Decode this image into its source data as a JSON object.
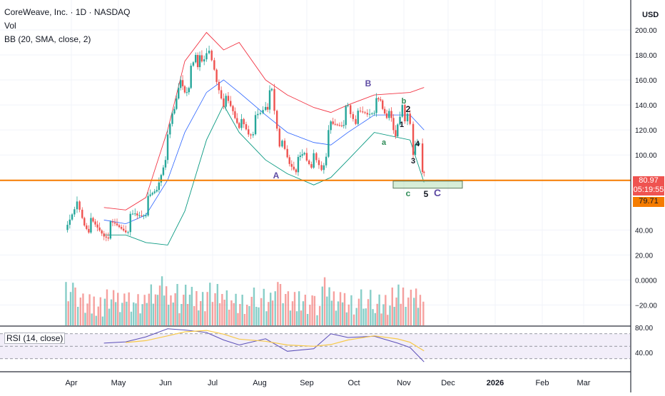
{
  "header": {
    "symbol_line": "CoreWeave, Inc. · 1D · NASDAQ",
    "vol_label": "Vol",
    "bb_label": "BB (20, SMA, close, 2)",
    "currency": "USD"
  },
  "price_axis": {
    "ticks": [
      {
        "value": 200,
        "label": "200.00"
      },
      {
        "value": 180,
        "label": "180.00"
      },
      {
        "value": 160,
        "label": "160.00"
      },
      {
        "value": 140,
        "label": "140.00"
      },
      {
        "value": 120,
        "label": "120.00"
      },
      {
        "value": 100,
        "label": "100.00"
      },
      {
        "value": 40,
        "label": "40.00"
      },
      {
        "value": 20,
        "label": "20.00"
      },
      {
        "value": 0,
        "label": "0.0000"
      },
      {
        "value": -20,
        "label": "−20.00"
      }
    ],
    "current_price": "80.97",
    "countdown": "05:19:55",
    "support_price": "79.71"
  },
  "rsi": {
    "label": "RSI (14, close)",
    "ticks": [
      {
        "value": 80,
        "label": "80.00"
      },
      {
        "value": 40,
        "label": "40.00"
      }
    ],
    "upper_band": 70,
    "lower_band": 30
  },
  "time_axis": {
    "labels": [
      "Apr",
      "May",
      "Jun",
      "Jul",
      "Aug",
      "Sep",
      "Oct",
      "Nov",
      "Dec",
      "2026",
      "Feb",
      "Mar"
    ]
  },
  "wave_labels": [
    "A",
    "B",
    "C",
    "a",
    "b",
    "c",
    "1",
    "2",
    "3",
    "4",
    "5"
  ],
  "colors": {
    "up": "#26a69a",
    "down": "#ef5350",
    "bb_upper": "#f23645",
    "bb_lower": "#089981",
    "bb_basis": "#2962ff",
    "horizontal_line": "#f57c00",
    "rsi_line": "#5b4fb8",
    "rsi_ma": "#f7c948",
    "wave_purple": "#5e4ba3",
    "wave_teal": "#2e8b57"
  },
  "chart_data": {
    "type": "candlestick",
    "title": "CoreWeave, Inc. · 1D · NASDAQ",
    "ylabel": "USD",
    "ylim": [
      -30,
      210
    ],
    "x_range": [
      "Apr",
      "Mar"
    ],
    "horizontal_line": 79.71,
    "last_price": 80.97,
    "price_path": [
      [
        "Mar 28",
        40
      ],
      [
        "Apr 3",
        63
      ],
      [
        "Apr 8",
        48
      ],
      [
        "Apr 15",
        42
      ],
      [
        "Apr 22",
        38
      ],
      [
        "Apr 29",
        42
      ],
      [
        "May 6",
        43
      ],
      [
        "May 12",
        50
      ],
      [
        "May 19",
        58
      ],
      [
        "May 26",
        72
      ],
      [
        "Jun 2",
        110
      ],
      [
        "Jun 5",
        130
      ],
      [
        "Jun 9",
        160
      ],
      [
        "Jun 13",
        150
      ],
      [
        "Jun 17",
        165
      ],
      [
        "Jun 20",
        180
      ],
      [
        "Jun 24",
        170
      ],
      [
        "Jun 27",
        183
      ],
      [
        "Jul 2",
        165
      ],
      [
        "Jul 8",
        145
      ],
      [
        "Jul 14",
        135
      ],
      [
        "Jul 18",
        128
      ],
      [
        "Jul 24",
        118
      ],
      [
        "Jul 30",
        128
      ],
      [
        "Aug 4",
        140
      ],
      [
        "Aug 8",
        148
      ],
      [
        "Aug 13",
        110
      ],
      [
        "Aug 18",
        95
      ],
      [
        "Aug 25",
        92
      ],
      [
        "Aug 29",
        100
      ],
      [
        "Sep 4",
        95
      ],
      [
        "Sep 9",
        88
      ],
      [
        "Sep 15",
        122
      ],
      [
        "Sep 22",
        128
      ],
      [
        "Sep 26",
        135
      ],
      [
        "Oct 1",
        128
      ],
      [
        "Oct 7",
        132
      ],
      [
        "Oct 13",
        140
      ],
      [
        "Oct 17",
        142
      ],
      [
        "Oct 21",
        136
      ],
      [
        "Oct 24",
        128
      ],
      [
        "Oct 28",
        118
      ],
      [
        "Oct 31",
        140
      ],
      [
        "Nov 5",
        120
      ],
      [
        "Nov 7",
        100
      ],
      [
        "Nov 11",
        106
      ],
      [
        "Nov 13",
        88
      ],
      [
        "Nov 14",
        80.97
      ]
    ],
    "bollinger_upper": [
      [
        "Apr 22",
        58
      ],
      [
        "May 6",
        56
      ],
      [
        "May 19",
        66
      ],
      [
        "Jun 2",
        120
      ],
      [
        "Jun 13",
        175
      ],
      [
        "Jun 27",
        198
      ],
      [
        "Jul 8",
        184
      ],
      [
        "Jul 18",
        190
      ],
      [
        "Aug 4",
        160
      ],
      [
        "Aug 18",
        148
      ],
      [
        "Sep 4",
        138
      ],
      [
        "Sep 15",
        134
      ],
      [
        "Sep 26",
        140
      ],
      [
        "Oct 13",
        148
      ],
      [
        "Nov 5",
        150
      ],
      [
        "Nov 14",
        154
      ]
    ],
    "bollinger_basis": [
      [
        "Apr 22",
        48
      ],
      [
        "May 6",
        45
      ],
      [
        "May 19",
        52
      ],
      [
        "Jun 2",
        80
      ],
      [
        "Jun 13",
        118
      ],
      [
        "Jun 27",
        150
      ],
      [
        "Jul 8",
        160
      ],
      [
        "Jul 18",
        150
      ],
      [
        "Aug 4",
        132
      ],
      [
        "Aug 18",
        118
      ],
      [
        "Sep 4",
        110
      ],
      [
        "Sep 15",
        108
      ],
      [
        "Sep 26",
        118
      ],
      [
        "Oct 13",
        132
      ],
      [
        "Nov 5",
        132
      ],
      [
        "Nov 14",
        120
      ]
    ],
    "bollinger_lower": [
      [
        "Apr 22",
        36
      ],
      [
        "May 6",
        36
      ],
      [
        "May 19",
        30
      ],
      [
        "Jun 2",
        28
      ],
      [
        "Jun 13",
        55
      ],
      [
        "Jun 27",
        112
      ],
      [
        "Jul 8",
        140
      ],
      [
        "Jul 18",
        118
      ],
      [
        "Aug 4",
        96
      ],
      [
        "Aug 18",
        85
      ],
      [
        "Sep 4",
        76
      ],
      [
        "Sep 15",
        82
      ],
      [
        "Sep 26",
        96
      ],
      [
        "Oct 13",
        118
      ],
      [
        "Nov 5",
        112
      ],
      [
        "Nov 14",
        78
      ]
    ],
    "rsi_values": [
      [
        "Apr 22",
        55
      ],
      [
        "May 6",
        57
      ],
      [
        "May 19",
        65
      ],
      [
        "Jun 2",
        78
      ],
      [
        "Jun 13",
        76
      ],
      [
        "Jun 27",
        72
      ],
      [
        "Jul 8",
        60
      ],
      [
        "Jul 18",
        52
      ],
      [
        "Aug 4",
        62
      ],
      [
        "Aug 18",
        42
      ],
      [
        "Sep 4",
        46
      ],
      [
        "Sep 15",
        70
      ],
      [
        "Sep 26",
        64
      ],
      [
        "Oct 13",
        66
      ],
      [
        "Oct 28",
        55
      ],
      [
        "Nov 5",
        48
      ],
      [
        "Nov 14",
        25
      ]
    ]
  }
}
